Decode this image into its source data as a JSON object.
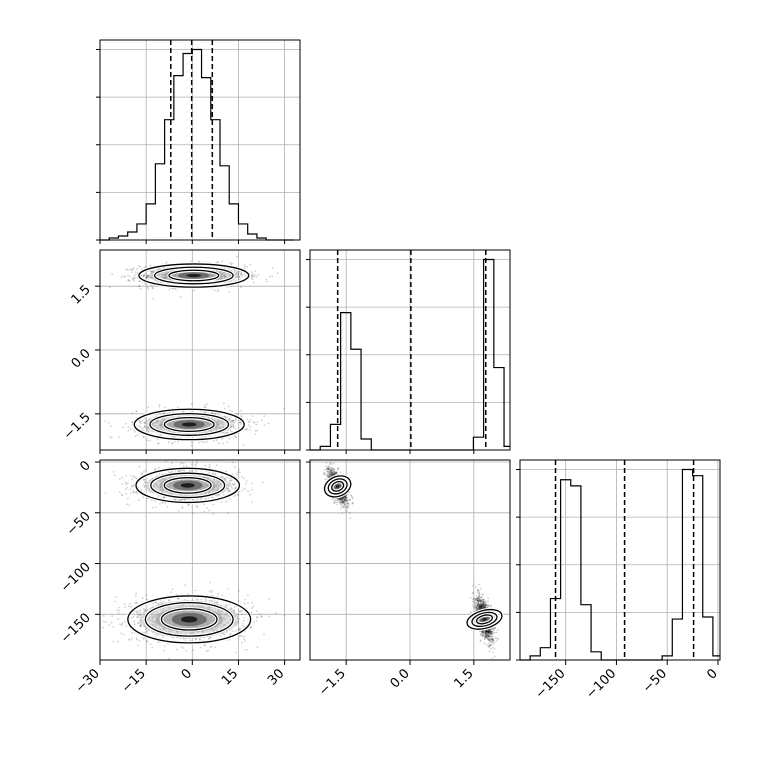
{
  "chart_data": {
    "type": "corner",
    "grid": true,
    "parameters": [
      {
        "key": "p1",
        "range": [
          -30,
          35
        ],
        "ticks": [
          -30,
          -15,
          0,
          15,
          30
        ],
        "tick_labels": [
          "−30",
          "−15",
          "0",
          "15",
          "30"
        ],
        "quantiles": [
          -7.0,
          -0.2,
          6.5
        ]
      },
      {
        "key": "p2",
        "range": [
          -2.35,
          2.35
        ],
        "ticks": [
          -1.5,
          0.0,
          1.5
        ],
        "tick_labels": [
          "−1.5",
          "0.0",
          "1.5"
        ],
        "quantiles": [
          -1.7,
          0.02,
          1.78
        ]
      },
      {
        "key": "p3",
        "range": [
          -195,
          2
        ],
        "ticks": [
          -150,
          -100,
          -50,
          0
        ],
        "tick_labels": [
          "−150",
          "−100",
          "−50",
          "0"
        ],
        "quantiles": [
          -160,
          -92,
          -24
        ]
      }
    ],
    "marginal_histograms": [
      {
        "param": "p1",
        "bin_edges": [
          -30,
          -27,
          -24,
          -21,
          -18,
          -15,
          -12,
          -9,
          -6,
          -3,
          0,
          3,
          6,
          9,
          12,
          15,
          18,
          21,
          24,
          27,
          30,
          33
        ],
        "counts": [
          0,
          1,
          2,
          4,
          8,
          18,
          38,
          60,
          82,
          93,
          95,
          81,
          60,
          37,
          18,
          8,
          3,
          1,
          0,
          0,
          0
        ]
      },
      {
        "param": "p2",
        "bin_edges": [
          -2.35,
          -2.11,
          -1.87,
          -1.63,
          -1.39,
          -1.15,
          -0.91,
          -0.67,
          -0.43,
          -0.19,
          0.05,
          0.29,
          0.53,
          0.77,
          1.01,
          1.25,
          1.49,
          1.73,
          1.97,
          2.21,
          2.45
        ],
        "counts": [
          0,
          2,
          14,
          75,
          55,
          6,
          0,
          0,
          0,
          0,
          0,
          0,
          0,
          0,
          0,
          0,
          7,
          104,
          45,
          2
        ]
      },
      {
        "param": "p3",
        "bin_edges": [
          -195,
          -185,
          -175,
          -165,
          -155,
          -145,
          -135,
          -125,
          -115,
          -105,
          -95,
          -85,
          -75,
          -65,
          -55,
          -45,
          -35,
          -25,
          -15,
          -5,
          5
        ],
        "counts": [
          0,
          2,
          6,
          30,
          88,
          85,
          27,
          4,
          0,
          0,
          0,
          0,
          0,
          0,
          2,
          20,
          93,
          90,
          21,
          2
        ]
      }
    ],
    "joint_panels": [
      {
        "x": "p1",
        "y": "p2",
        "modes": [
          {
            "cx": 0.5,
            "cy": 1.75,
            "sx": 8.5,
            "sy": 0.13,
            "n": 1400
          },
          {
            "cx": -1.0,
            "cy": -1.75,
            "sx": 8.5,
            "sy": 0.17,
            "n": 1200
          }
        ]
      },
      {
        "x": "p1",
        "y": "p3",
        "modes": [
          {
            "cx": -1.5,
            "cy": -23,
            "sx": 8.0,
            "sy": 8.0,
            "n": 1300
          },
          {
            "cx": -1.0,
            "cy": -155,
            "sx": 9.5,
            "sy": 11.0,
            "n": 1300
          }
        ]
      },
      {
        "x": "p2",
        "y": "p3",
        "modes": [
          {
            "cx": -1.7,
            "cy": -24,
            "sx": 0.11,
            "sy": 8.0,
            "n": 1300,
            "rho": -0.6
          },
          {
            "cx": 1.75,
            "cy": -155,
            "sx": 0.1,
            "sy": 10.5,
            "n": 1300,
            "rho": -0.6
          }
        ]
      }
    ]
  }
}
